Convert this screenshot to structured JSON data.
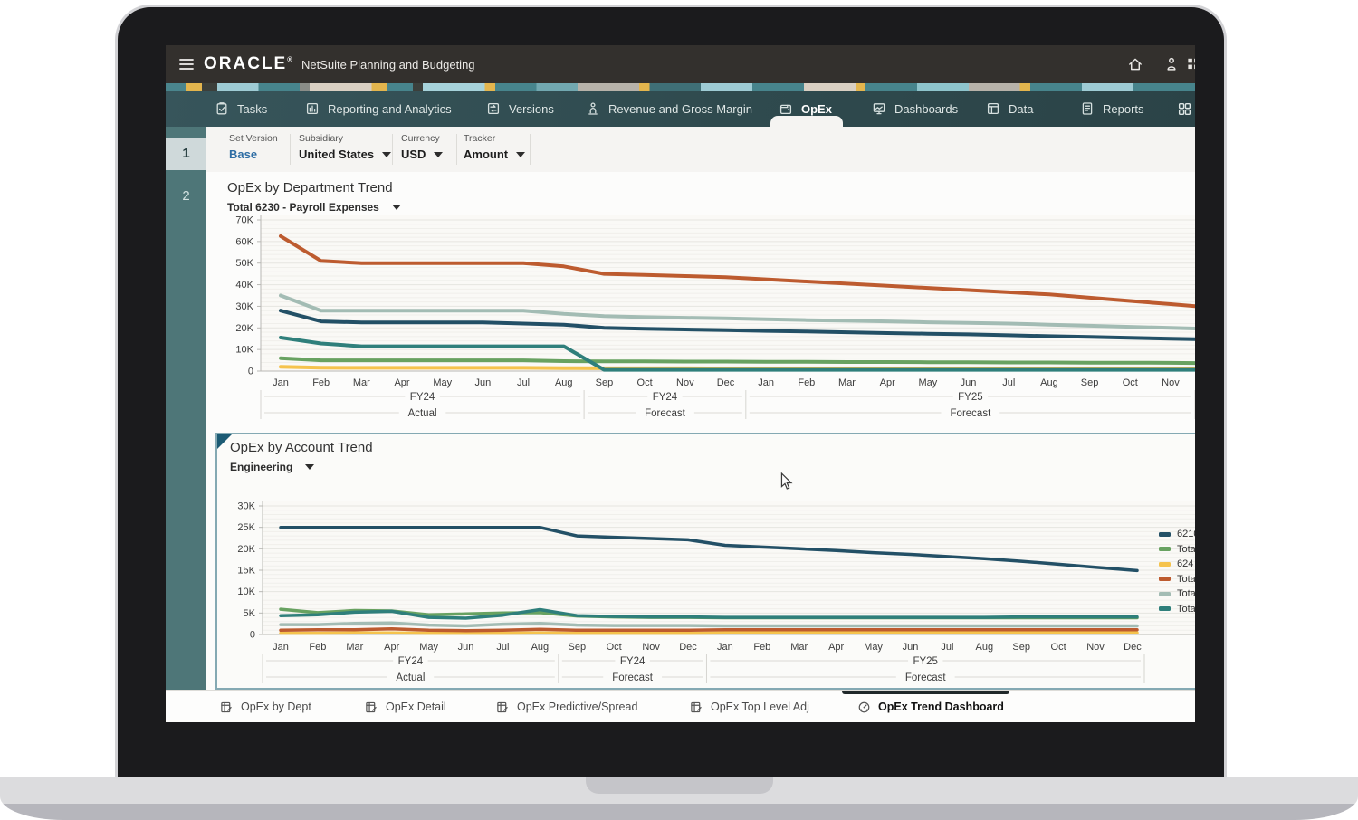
{
  "header": {
    "brand": "ORACLE",
    "brand_mark": "®",
    "product": "NetSuite Planning and Budgeting",
    "icons": [
      "home-icon",
      "person-icon",
      "apps-icon"
    ]
  },
  "nav": {
    "tabs": [
      {
        "label": "Tasks",
        "icon": "tasks-icon",
        "active": false
      },
      {
        "label": "Reporting and Analytics",
        "icon": "reporting-icon",
        "active": false
      },
      {
        "label": "Versions",
        "icon": "versions-icon",
        "active": false
      },
      {
        "label": "Revenue and Gross Margin",
        "icon": "revenue-icon",
        "active": false
      },
      {
        "label": "OpEx",
        "icon": "opex-icon",
        "active": true
      },
      {
        "label": "Dashboards",
        "icon": "dashboards-icon",
        "active": false
      },
      {
        "label": "Data",
        "icon": "data-icon",
        "active": false
      },
      {
        "label": "Reports",
        "icon": "reports-icon",
        "active": false
      }
    ],
    "trailing_icon": "waffle-grid-icon"
  },
  "steps": [
    "1",
    "2"
  ],
  "filters": [
    {
      "label": "Set Version",
      "value": "Base",
      "has_arrow": false,
      "value_style": "link"
    },
    {
      "label": "Subsidiary",
      "value": "United States",
      "has_arrow": true,
      "value_style": "plain"
    },
    {
      "label": "Currency",
      "value": "USD",
      "has_arrow": true,
      "value_style": "plain"
    },
    {
      "label": "Tracker",
      "value": "Amount",
      "has_arrow": true,
      "value_style": "plain"
    }
  ],
  "bottom_tabs": [
    {
      "label": "OpEx by Dept",
      "icon": "sheet-icon",
      "active": false
    },
    {
      "label": "OpEx Detail",
      "icon": "sheet-icon",
      "active": false
    },
    {
      "label": "OpEx Predictive/Spread",
      "icon": "sheet-icon",
      "active": false
    },
    {
      "label": "OpEx Top Level Adj",
      "icon": "sheet-icon",
      "active": false
    },
    {
      "label": "OpEx Trend Dashboard",
      "icon": "gauge-icon",
      "active": true
    }
  ],
  "colors": {
    "accent_link": "#2e6da4",
    "panel_border": "#84a9b3",
    "nav_bg": "#2f4a4e",
    "sidebar_bg": "#4e7678"
  },
  "chart_data": [
    {
      "type": "line",
      "title": "OpEx by Department Trend",
      "subtitle": "Total 6230 - Payroll Expenses",
      "categories": [
        "Jan",
        "Feb",
        "Mar",
        "Apr",
        "May",
        "Jun",
        "Jul",
        "Aug",
        "Sep",
        "Oct",
        "Nov",
        "Dec",
        "Jan",
        "Feb",
        "Mar",
        "Apr",
        "May",
        "Jun",
        "Jul",
        "Aug",
        "Sep",
        "Oct",
        "Nov"
      ],
      "groups": [
        {
          "fiscal": "FY24",
          "scenario": "Actual",
          "start": 0,
          "end": 7
        },
        {
          "fiscal": "FY24",
          "scenario": "Forecast",
          "start": 8,
          "end": 11
        },
        {
          "fiscal": "FY25",
          "scenario": "Forecast",
          "start": 12,
          "end": 22
        }
      ],
      "ylim_k": [
        0,
        70
      ],
      "ytick_step_k": 10,
      "ytick_labels": [
        "0",
        "10K",
        "20K",
        "30K",
        "40K",
        "50K",
        "60K",
        "70K"
      ],
      "grid": true,
      "legend_visible": false,
      "series": [
        {
          "color": "#f5c34d",
          "values_k": [
            2,
            1.6,
            1.5,
            1.5,
            1.5,
            1.5,
            1.5,
            1.4,
            1.3,
            1.3,
            1.3,
            1.2,
            1.2,
            1.2,
            1.2,
            1.1,
            1.1,
            1.1,
            1.1,
            1,
            1,
            1,
            1
          ]
        },
        {
          "color": "#68a261",
          "values_k": [
            6,
            5,
            5,
            5,
            5,
            5,
            5,
            4.6,
            4.5,
            4.5,
            4.4,
            4.4,
            4.3,
            4.3,
            4.2,
            4.2,
            4.1,
            4.1,
            4,
            4,
            3.9,
            3.9,
            3.8
          ]
        },
        {
          "color": "#a3bcb4",
          "values_k": [
            35,
            28,
            28,
            28,
            28,
            28,
            28,
            26.5,
            25.5,
            25,
            24.7,
            24.4,
            24,
            23.6,
            23.3,
            23,
            22.6,
            22.3,
            22,
            21.5,
            21,
            20.5,
            20
          ]
        },
        {
          "color": "#235066",
          "values_k": [
            28,
            23,
            22.5,
            22.5,
            22.5,
            22.5,
            22,
            21.5,
            20,
            19.6,
            19.3,
            19,
            18.6,
            18.3,
            18,
            17.6,
            17.3,
            17,
            16.6,
            16.2,
            15.8,
            15.4,
            15
          ]
        },
        {
          "color": "#2f7f7b",
          "values_k": [
            15.5,
            12.8,
            11.5,
            11.5,
            11.5,
            11.5,
            11.5,
            11.5,
            0.6,
            0.6,
            0.6,
            0.6,
            0.6,
            0.6,
            0.6,
            0.6,
            0.6,
            0.6,
            0.6,
            0.6,
            0.6,
            0.6,
            0.6
          ]
        },
        {
          "color": "#bd5b2f",
          "values_k": [
            62.5,
            51,
            50,
            50,
            50,
            50,
            50,
            48.5,
            45,
            44.5,
            44,
            43.5,
            42.5,
            41.5,
            40.5,
            39.5,
            38.5,
            37.5,
            36.5,
            35.5,
            34,
            32.5,
            31
          ]
        }
      ]
    },
    {
      "type": "line",
      "title": "OpEx by Account Trend",
      "subtitle": "Engineering",
      "categories": [
        "Jan",
        "Feb",
        "Mar",
        "Apr",
        "May",
        "Jun",
        "Jul",
        "Aug",
        "Sep",
        "Oct",
        "Nov",
        "Dec",
        "Jan",
        "Feb",
        "Mar",
        "Apr",
        "May",
        "Jun",
        "Jul",
        "Aug",
        "Sep",
        "Oct",
        "Nov",
        "Dec"
      ],
      "groups": [
        {
          "fiscal": "FY24",
          "scenario": "Actual",
          "start": 0,
          "end": 7
        },
        {
          "fiscal": "FY24",
          "scenario": "Forecast",
          "start": 8,
          "end": 11
        },
        {
          "fiscal": "FY25",
          "scenario": "Forecast",
          "start": 12,
          "end": 23
        }
      ],
      "ylim_k": [
        0,
        30
      ],
      "ytick_step_k": 5,
      "ytick_labels": [
        "0",
        "5K",
        "10K",
        "15K",
        "20K",
        "25K",
        "30K"
      ],
      "grid": true,
      "legend_visible": true,
      "legend_position": "right",
      "legend": [
        {
          "label": "6210",
          "color": "#235066"
        },
        {
          "label": "Tota",
          "color": "#68a261"
        },
        {
          "label": "624",
          "color": "#f5c34d"
        },
        {
          "label": "Tota",
          "color": "#bd5b2f"
        },
        {
          "label": "Tota",
          "color": "#a3bcb4"
        },
        {
          "label": "Tota",
          "color": "#2f7f7b"
        }
      ],
      "series": [
        {
          "color": "#f5c34d",
          "values_k": [
            0.3,
            0.3,
            0.35,
            0.35,
            0.3,
            0.3,
            0.3,
            0.35,
            0.3,
            0.3,
            0.3,
            0.3,
            0.35,
            0.35,
            0.35,
            0.35,
            0.35,
            0.35,
            0.35,
            0.35,
            0.4,
            0.4,
            0.4,
            0.4
          ]
        },
        {
          "color": "#a3bcb4",
          "values_k": [
            2.3,
            2.3,
            2.6,
            2.7,
            2.2,
            2,
            2.4,
            2.6,
            2.2,
            2.1,
            2.1,
            2.1,
            2,
            2,
            2,
            2,
            2,
            2,
            2,
            2,
            2,
            2,
            2,
            2
          ]
        },
        {
          "color": "#bd5b2f",
          "values_k": [
            1,
            1.1,
            1.1,
            1.3,
            1,
            0.9,
            1,
            1.2,
            1,
            1,
            1,
            1,
            1.1,
            1.1,
            1.1,
            1.1,
            1.1,
            1.1,
            1.1,
            1.1,
            1.1,
            1.1,
            1.1,
            1.1
          ]
        },
        {
          "color": "#68a261",
          "values_k": [
            5.9,
            5.1,
            5.6,
            5.5,
            4.6,
            4.8,
            5,
            5.1,
            4.3,
            4.1,
            4,
            4,
            3.9,
            3.9,
            3.9,
            3.9,
            3.9,
            3.9,
            3.9,
            3.9,
            3.9,
            3.9,
            3.9,
            3.9
          ]
        },
        {
          "color": "#2f7f7b",
          "values_k": [
            4.4,
            4.6,
            5.2,
            5.4,
            4,
            3.8,
            4.5,
            5.8,
            4.4,
            4.2,
            4.1,
            4.1,
            4,
            4,
            4,
            4,
            4,
            4,
            4,
            4,
            4.1,
            4.1,
            4.1,
            4.1
          ]
        },
        {
          "color": "#235066",
          "values_k": [
            25,
            25,
            25,
            25,
            25,
            25,
            25,
            25,
            23,
            22.7,
            22.4,
            22.1,
            20.8,
            20.4,
            20,
            19.6,
            19.1,
            18.7,
            18.2,
            17.7,
            17.1,
            16.4,
            15.7,
            15
          ]
        }
      ]
    }
  ]
}
